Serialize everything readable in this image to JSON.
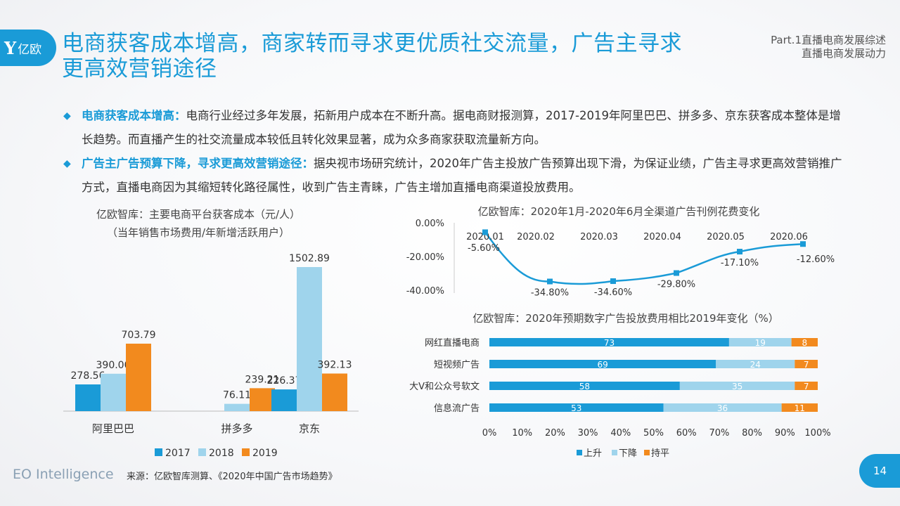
{
  "logo": {
    "mark": "Y",
    "text": "亿欧"
  },
  "title": "电商获客成本增高，商家转而寻求更优质社交流量，广告主寻求更高效营销途径",
  "part": {
    "line1": "Part.1直播电商发展综述",
    "line2": "直播电商发展动力"
  },
  "bullets": [
    {
      "lead": "电商获客成本增高：",
      "text": "电商行业经过多年发展，拓新用户成本在不断升高。据电商财报测算，2017-2019年阿里巴巴、拼多多、京东获客成本整体是增长趋势。而直播产生的社交流量成本较低且转化效果显著，成为众多商家获取流量新方向。"
    },
    {
      "lead": "广告主广告预算下降，寻求更高效营销途径：",
      "text": "据央视市场研究统计，2020年广告主投放广告预算出现下滑，为保证业绩，广告主寻求更高效营销推广方式，直播电商因为其缩短转化路径属性，收到广告主青睐，广告主增加直播电商渠道投放费用。"
    }
  ],
  "chart_titles": {
    "bar_line1": "亿欧智库：主要电商平台获客成本（元/人）",
    "bar_line2": "（当年销售市场费用/年新增活跃用户）",
    "line": "亿欧智库：2020年1月-2020年6月全渠道广告刊例花费变化",
    "stacked": "亿欧智库：2020年预期数字广告投放费用相比2019年变化（%）"
  },
  "chart_data": [
    {
      "type": "bar",
      "categories": [
        "阿里巴巴",
        "拼多多",
        "京东"
      ],
      "series": [
        {
          "name": "2017",
          "color": "#1a9bd7",
          "values": [
            278.56,
            null,
            226.37
          ]
        },
        {
          "name": "2018",
          "color": "#9fd4ec",
          "values": [
            390.0,
            76.11,
            1502.89
          ]
        },
        {
          "name": "2019",
          "color": "#f28a1e",
          "values": [
            703.79,
            239.21,
            392.13
          ]
        }
      ],
      "labels": [
        [
          "278.56",
          "",
          "226.37"
        ],
        [
          "390.00",
          "76.11",
          "1502.89"
        ],
        [
          "703.79",
          "239.21",
          "392.13"
        ]
      ],
      "ylim": [
        0,
        1600
      ],
      "legend": "bottom"
    },
    {
      "type": "line",
      "x": [
        "2020.01",
        "2020.02",
        "2020.03",
        "2020.04",
        "2020.05",
        "2020.06"
      ],
      "values": [
        -5.6,
        -34.8,
        -34.6,
        -29.8,
        -17.1,
        -12.6
      ],
      "value_labels": [
        "-5.60%",
        "-34.80%",
        "-34.60%",
        "-29.80%",
        "-17.10%",
        "-12.60%"
      ],
      "yticks": [
        "0.00%",
        "-20.00%",
        "-40.00%"
      ],
      "ylim": [
        -40,
        0
      ],
      "color": "#1a9bd7"
    },
    {
      "type": "bar",
      "orientation": "horizontal-stacked-100",
      "categories": [
        "网红直播电商",
        "短视频广告",
        "大V和公众号软文",
        "信息流广告"
      ],
      "series": [
        {
          "name": "上升",
          "color": "#1a9bd7",
          "values": [
            73,
            69,
            58,
            53
          ]
        },
        {
          "name": "下降",
          "color": "#9fd4ec",
          "values": [
            19,
            24,
            35,
            36
          ]
        },
        {
          "name": "持平",
          "color": "#f28a1e",
          "values": [
            8,
            7,
            7,
            11
          ]
        }
      ],
      "xticks": [
        "0%",
        "10%",
        "20%",
        "30%",
        "40%",
        "50%",
        "60%",
        "70%",
        "80%",
        "90%",
        "100%"
      ],
      "xlim": [
        0,
        100
      ],
      "legend": "bottom"
    }
  ],
  "footer": {
    "brand": "EO Intelligence",
    "source": "来源：亿欧智库测算、《2020年中国广告市场趋势》",
    "page": "14"
  }
}
